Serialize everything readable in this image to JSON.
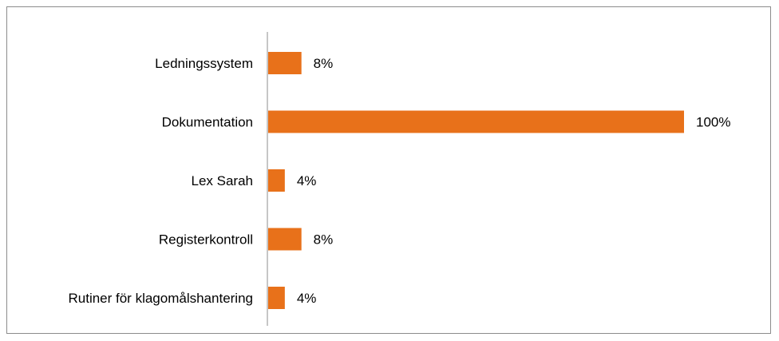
{
  "chart_data": {
    "type": "bar",
    "orientation": "horizontal",
    "title": "",
    "xlabel": "",
    "ylabel": "",
    "categories": [
      "Ledningssystem",
      "Dokumentation",
      "Lex Sarah",
      "Registerkontroll",
      "Rutiner för klagomålshantering"
    ],
    "values": [
      8,
      100,
      4,
      8,
      4
    ],
    "value_labels": [
      "8%",
      "100%",
      "4%",
      "8%",
      "4%"
    ],
    "unit": "%",
    "xlim": [
      0,
      100
    ],
    "grid": false,
    "legend": "none",
    "bar_color": "#E8711A",
    "axis_color": "#8c8c8c"
  }
}
